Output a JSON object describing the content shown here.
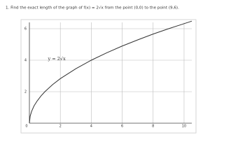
{
  "chart_data": {
    "type": "line",
    "title": "1. Find the exact length of the graph of f(x) = 2√x from the point (0,0) to the point (9,6).",
    "annotation": "y = 2√x",
    "x": [
      0,
      0.05,
      0.15,
      0.3,
      0.5,
      0.75,
      1,
      1.5,
      2,
      3,
      4,
      5,
      6,
      7,
      8,
      9,
      10,
      10.5
    ],
    "values": [
      0,
      0.45,
      0.77,
      1.1,
      1.41,
      1.73,
      2,
      2.45,
      2.83,
      3.46,
      4,
      4.47,
      4.9,
      5.29,
      5.66,
      6,
      6.32,
      6.48
    ],
    "color": "#333333",
    "xlim": [
      0,
      10.5
    ],
    "ylim": [
      0,
      6.4
    ],
    "xticks": [
      0,
      2,
      4,
      6,
      8,
      10
    ],
    "yticks": [
      2,
      4,
      6
    ],
    "grid": true
  }
}
